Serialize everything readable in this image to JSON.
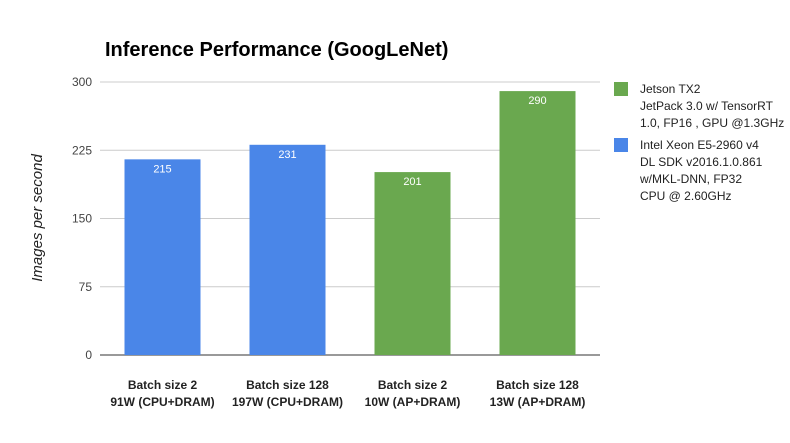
{
  "chart_data": {
    "type": "bar",
    "title": "Inference Performance (GoogLeNet)",
    "xlabel": "",
    "ylabel": "Images per second",
    "ylim": [
      0,
      300
    ],
    "yticks": [
      0,
      75,
      150,
      225,
      300
    ],
    "grid": true,
    "legend_position": "right",
    "categories": [
      [
        "Batch size 2",
        "91W (CPU+DRAM)"
      ],
      [
        "Batch size 128",
        "197W (CPU+DRAM)"
      ],
      [
        "Batch size 2",
        "10W (AP+DRAM)"
      ],
      [
        "Batch size 128",
        "13W (AP+DRAM)"
      ]
    ],
    "values": [
      215,
      231,
      201,
      290
    ],
    "bar_series": [
      1,
      1,
      0,
      0
    ],
    "series": [
      {
        "legend": [
          "Jetson TX2",
          "JetPack 3.0 w/ TensorRT",
          "1.0, FP16 , GPU @1.3GHz"
        ],
        "color": "#6aa84f"
      },
      {
        "legend": [
          "Intel Xeon E5-2960 v4",
          "DL SDK v2016.1.0.861",
          "w/MKL-DNN, FP32",
          "CPU @ 2.60GHz"
        ],
        "color": "#4a86e8"
      }
    ]
  }
}
